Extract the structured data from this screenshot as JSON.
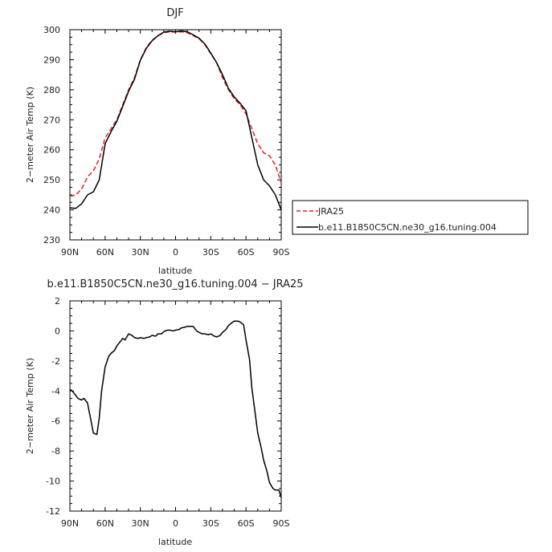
{
  "chart_data": [
    {
      "type": "line",
      "title": "DJF",
      "xlabel": "latitude",
      "ylabel": "2−meter Air Temp (K)",
      "xlim": [
        90,
        -90
      ],
      "ylim": [
        230,
        300
      ],
      "x_ticks": [
        90,
        60,
        30,
        0,
        -30,
        -60,
        -90
      ],
      "x_tick_labels": [
        "90N",
        "60N",
        "30N",
        "0",
        "30S",
        "60S",
        "90S"
      ],
      "y_ticks": [
        230,
        240,
        250,
        260,
        270,
        280,
        290,
        300
      ],
      "legend_position": "right",
      "series": [
        {
          "name": "JRA25",
          "color": "#dd2222",
          "style": "dashed",
          "x": [
            90,
            85,
            80,
            75,
            70,
            65,
            60,
            55,
            50,
            45,
            40,
            35,
            30,
            25,
            20,
            15,
            10,
            5,
            0,
            -5,
            -10,
            -15,
            -20,
            -25,
            -30,
            -35,
            -40,
            -45,
            -50,
            -55,
            -60,
            -65,
            -70,
            -75,
            -80,
            -85,
            -90
          ],
          "y": [
            244.5,
            245,
            247,
            251,
            253,
            257,
            264,
            267,
            270,
            275,
            280,
            284,
            290,
            294,
            296.5,
            298,
            299,
            299.3,
            299.2,
            299.3,
            299,
            298,
            297,
            295,
            292,
            289,
            284,
            280,
            277,
            275,
            272,
            267,
            262,
            259,
            258,
            255,
            249
          ]
        },
        {
          "name": "b.e11.B1850C5CN.ne30_g16.tuning.004",
          "color": "#000000",
          "style": "solid",
          "x": [
            90,
            85,
            80,
            75,
            70,
            65,
            60,
            55,
            50,
            45,
            40,
            35,
            30,
            25,
            20,
            15,
            10,
            5,
            0,
            -5,
            -10,
            -15,
            -20,
            -25,
            -30,
            -35,
            -40,
            -45,
            -50,
            -55,
            -60,
            -65,
            -70,
            -75,
            -80,
            -85,
            -90
          ],
          "y": [
            240.7,
            240.5,
            242,
            245,
            246,
            250,
            262,
            266,
            269.5,
            274.5,
            279.5,
            283.5,
            289.8,
            293.7,
            296.3,
            298,
            299.2,
            299.5,
            299.3,
            299.6,
            299.3,
            298.3,
            297.2,
            295.2,
            292.2,
            289,
            285,
            280.5,
            277.6,
            275.5,
            273,
            264,
            255,
            250,
            248,
            245,
            240
          ]
        }
      ]
    },
    {
      "type": "line",
      "title": "b.e11.B1850C5CN.ne30_g16.tuning.004 − JRA25",
      "xlabel": "latitude",
      "ylabel": "2−meter Air Temp (K)",
      "xlim": [
        90,
        -90
      ],
      "ylim": [
        -12,
        2
      ],
      "x_ticks": [
        90,
        60,
        30,
        0,
        -30,
        -60,
        -90
      ],
      "x_tick_labels": [
        "90N",
        "60N",
        "30N",
        "0",
        "30S",
        "60S",
        "90S"
      ],
      "y_ticks": [
        -12,
        -10,
        -8,
        -6,
        -4,
        -2,
        0,
        2
      ],
      "series": [
        {
          "color": "#000000",
          "style": "solid",
          "x": [
            90,
            88,
            85,
            83,
            80,
            78,
            75,
            72,
            70,
            67,
            65,
            63,
            60,
            57,
            55,
            52,
            50,
            47,
            45,
            43,
            40,
            37,
            35,
            32,
            30,
            27,
            25,
            22,
            20,
            17,
            15,
            12,
            10,
            7,
            5,
            2,
            0,
            -3,
            -5,
            -8,
            -10,
            -13,
            -15,
            -18,
            -20,
            -23,
            -25,
            -28,
            -30,
            -33,
            -35,
            -38,
            -40,
            -43,
            -45,
            -48,
            -50,
            -53,
            -55,
            -58,
            -60,
            -63,
            -65,
            -68,
            -70,
            -73,
            -75,
            -78,
            -80,
            -83,
            -85,
            -88,
            -90
          ],
          "y": [
            -3.9,
            -4.0,
            -4.3,
            -4.5,
            -4.6,
            -4.5,
            -4.8,
            -6.0,
            -6.8,
            -6.9,
            -5.8,
            -4.0,
            -2.4,
            -1.7,
            -1.5,
            -1.3,
            -1.0,
            -0.7,
            -0.5,
            -0.6,
            -0.2,
            -0.3,
            -0.45,
            -0.5,
            -0.45,
            -0.5,
            -0.45,
            -0.4,
            -0.3,
            -0.35,
            -0.2,
            -0.2,
            -0.05,
            0.05,
            0.05,
            0.0,
            0.05,
            0.1,
            0.2,
            0.25,
            0.3,
            0.3,
            0.3,
            0.0,
            -0.1,
            -0.2,
            -0.2,
            -0.25,
            -0.2,
            -0.35,
            -0.4,
            -0.3,
            -0.1,
            0.1,
            0.35,
            0.55,
            0.65,
            0.65,
            0.6,
            0.4,
            -0.6,
            -1.9,
            -3.8,
            -5.6,
            -6.8,
            -7.8,
            -8.6,
            -9.4,
            -10.1,
            -10.5,
            -10.6,
            -10.6,
            -11.1
          ]
        }
      ]
    }
  ]
}
